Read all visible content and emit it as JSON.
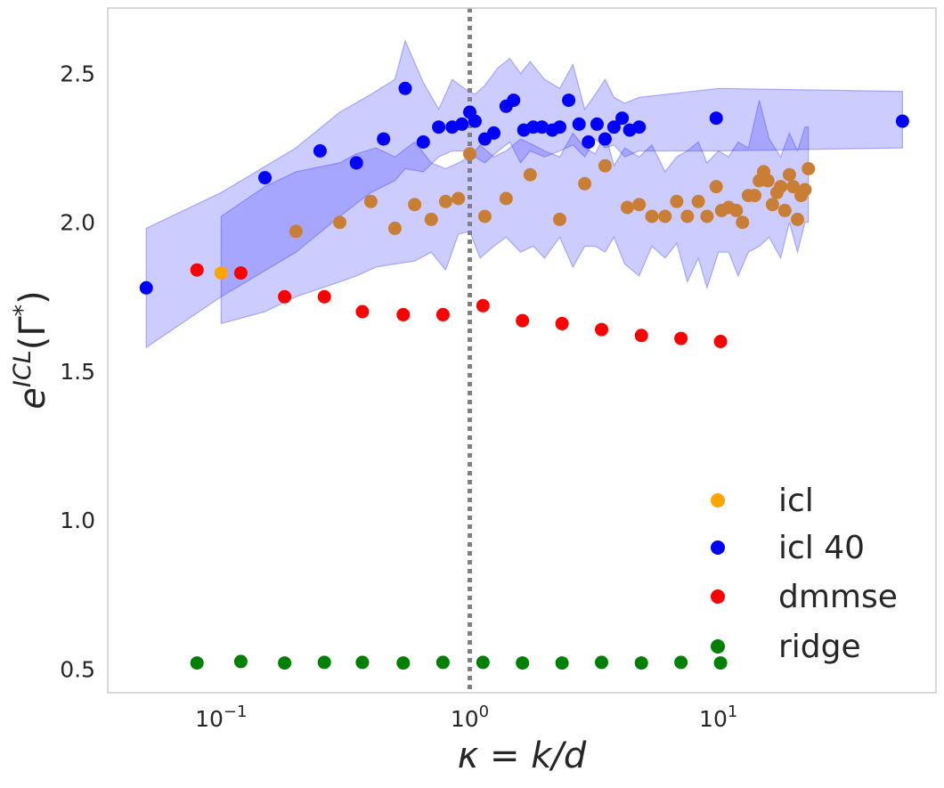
{
  "chart_data": {
    "type": "scatter",
    "title": "",
    "xlabel": "κ = k/d",
    "ylabel": "e^{ICL}(Γ*)",
    "xscale": "log",
    "xlim": [
      0.035,
      75
    ],
    "ylim": [
      0.42,
      2.72
    ],
    "yticks": [
      {
        "value": 0.5,
        "label": "0.5"
      },
      {
        "value": 1.0,
        "label": "1.0"
      },
      {
        "value": 1.5,
        "label": "1.5"
      },
      {
        "value": 2.0,
        "label": "2.0"
      },
      {
        "value": 2.5,
        "label": "2.5"
      }
    ],
    "xticks": [
      {
        "value": 0.1,
        "base": "10",
        "exp": "−1"
      },
      {
        "value": 1,
        "base": "10",
        "exp": "0"
      },
      {
        "value": 10,
        "base": "10",
        "exp": "1"
      }
    ],
    "grid": false,
    "vline": {
      "x": 1.0,
      "style": "dotted",
      "color": "#808080"
    },
    "legend_position": "lower right",
    "series": [
      {
        "name": "icl",
        "color": "#ffa500",
        "band_color": "#3333ff",
        "x": [
          0.1,
          0.2,
          0.3,
          0.4,
          0.5,
          0.6,
          0.7,
          0.8,
          0.9,
          1.0,
          1.15,
          1.4,
          1.75,
          2.3,
          2.9,
          3.5,
          4.3,
          4.8,
          5.4,
          6.1,
          6.8,
          7.5,
          8.3,
          9.0,
          9.8,
          10.3,
          11.0,
          11.8,
          12.5,
          13.2,
          14.0,
          14.6,
          15.2,
          15.8,
          16.5,
          17.2,
          17.8,
          18.5,
          19.3,
          20.0,
          20.8,
          21.5,
          22.3,
          23.0
        ],
        "y": [
          1.83,
          1.97,
          2.0,
          2.07,
          1.98,
          2.06,
          2.01,
          2.07,
          2.08,
          2.23,
          2.02,
          2.08,
          2.16,
          2.01,
          2.13,
          2.19,
          2.05,
          2.06,
          2.02,
          2.02,
          2.07,
          2.02,
          2.07,
          2.02,
          2.12,
          2.04,
          2.05,
          2.04,
          2.0,
          2.09,
          2.09,
          2.14,
          2.17,
          2.14,
          2.06,
          2.1,
          2.12,
          2.04,
          2.16,
          2.12,
          2.01,
          2.09,
          2.11,
          2.18
        ],
        "band_x": [
          0.1,
          0.15,
          0.2,
          0.3,
          0.35,
          0.42,
          0.5,
          0.6,
          0.7,
          0.8,
          0.9,
          1.0,
          1.1,
          1.25,
          1.4,
          1.6,
          1.8,
          2.0,
          2.3,
          2.6,
          2.9,
          3.2,
          3.5,
          3.8,
          4.2,
          4.8,
          5.4,
          6.1,
          6.8,
          7.5,
          8.3,
          9.0,
          10.0,
          11.0,
          12.0,
          13.2,
          14.6,
          16.0,
          17.8,
          19.3,
          20.8,
          22.3,
          23.0
        ],
        "band_upper": [
          2.02,
          2.12,
          2.17,
          2.2,
          2.23,
          2.25,
          2.22,
          2.27,
          2.2,
          2.18,
          2.2,
          2.22,
          2.26,
          2.22,
          2.24,
          2.28,
          2.26,
          2.24,
          2.22,
          2.3,
          2.25,
          2.23,
          2.3,
          2.19,
          2.25,
          2.22,
          2.26,
          2.17,
          2.22,
          2.24,
          2.27,
          2.2,
          2.24,
          2.22,
          2.27,
          2.25,
          2.41,
          2.28,
          2.22,
          2.3,
          2.24,
          2.32,
          2.32
        ],
        "band_lower": [
          1.66,
          1.7,
          1.75,
          1.8,
          1.82,
          1.85,
          1.86,
          1.87,
          1.9,
          1.84,
          1.96,
          1.97,
          1.88,
          1.92,
          1.95,
          1.9,
          1.92,
          1.88,
          1.95,
          1.85,
          1.92,
          1.92,
          1.9,
          1.95,
          1.86,
          1.82,
          1.92,
          1.88,
          1.93,
          1.8,
          1.88,
          1.78,
          1.9,
          1.9,
          1.82,
          1.9,
          1.92,
          1.95,
          1.88,
          2.0,
          1.9,
          2.0,
          2.0
        ]
      },
      {
        "name": "icl 40",
        "color": "#0000ff",
        "band_color": "#3333ff",
        "x": [
          0.05,
          0.15,
          0.25,
          0.35,
          0.45,
          0.55,
          0.65,
          0.75,
          0.85,
          0.93,
          1.0,
          1.05,
          1.15,
          1.25,
          1.4,
          1.5,
          1.65,
          1.8,
          1.95,
          2.15,
          2.3,
          2.5,
          2.75,
          3.0,
          3.25,
          3.5,
          3.8,
          4.1,
          4.4,
          4.8,
          9.8,
          55.0
        ],
        "y": [
          1.78,
          2.15,
          2.24,
          2.2,
          2.28,
          2.45,
          2.27,
          2.32,
          2.32,
          2.33,
          2.37,
          2.34,
          2.28,
          2.3,
          2.39,
          2.41,
          2.31,
          2.32,
          2.32,
          2.31,
          2.32,
          2.41,
          2.33,
          2.27,
          2.33,
          2.28,
          2.32,
          2.35,
          2.31,
          2.32,
          2.35,
          2.34
        ],
        "band_x": [
          0.05,
          0.1,
          0.2,
          0.3,
          0.4,
          0.5,
          0.55,
          0.65,
          0.75,
          0.85,
          0.95,
          1.05,
          1.15,
          1.3,
          1.45,
          1.6,
          1.75,
          2.0,
          2.3,
          2.6,
          2.9,
          3.2,
          3.5,
          3.8,
          4.2,
          4.8,
          10.0,
          55.0
        ],
        "band_upper": [
          1.98,
          2.1,
          2.25,
          2.37,
          2.43,
          2.48,
          2.61,
          2.47,
          2.38,
          2.48,
          2.45,
          2.43,
          2.46,
          2.52,
          2.55,
          2.5,
          2.54,
          2.48,
          2.45,
          2.53,
          2.38,
          2.43,
          2.48,
          2.42,
          2.4,
          2.42,
          2.45,
          2.44
        ],
        "band_lower": [
          1.58,
          1.75,
          1.9,
          2.02,
          2.1,
          2.14,
          2.18,
          2.17,
          2.22,
          2.24,
          2.24,
          2.22,
          2.2,
          2.24,
          2.27,
          2.2,
          2.24,
          2.22,
          2.24,
          2.26,
          2.22,
          2.28,
          2.25,
          2.26,
          2.22,
          2.24,
          2.24,
          2.25
        ]
      },
      {
        "name": "dmmse",
        "color": "#ff0000",
        "x": [
          0.08,
          0.12,
          0.18,
          0.26,
          0.37,
          0.54,
          0.78,
          1.13,
          1.63,
          2.35,
          3.39,
          4.9,
          7.07,
          10.2
        ],
        "y": [
          1.84,
          1.83,
          1.75,
          1.75,
          1.7,
          1.69,
          1.69,
          1.72,
          1.67,
          1.66,
          1.64,
          1.62,
          1.61,
          1.6
        ]
      },
      {
        "name": "ridge",
        "color": "#008000",
        "x": [
          0.08,
          0.12,
          0.18,
          0.26,
          0.37,
          0.54,
          0.78,
          1.13,
          1.63,
          2.35,
          3.39,
          4.9,
          7.07,
          10.2
        ],
        "y": [
          0.52,
          0.525,
          0.52,
          0.522,
          0.522,
          0.52,
          0.522,
          0.522,
          0.52,
          0.52,
          0.522,
          0.52,
          0.522,
          0.52
        ]
      }
    ]
  }
}
